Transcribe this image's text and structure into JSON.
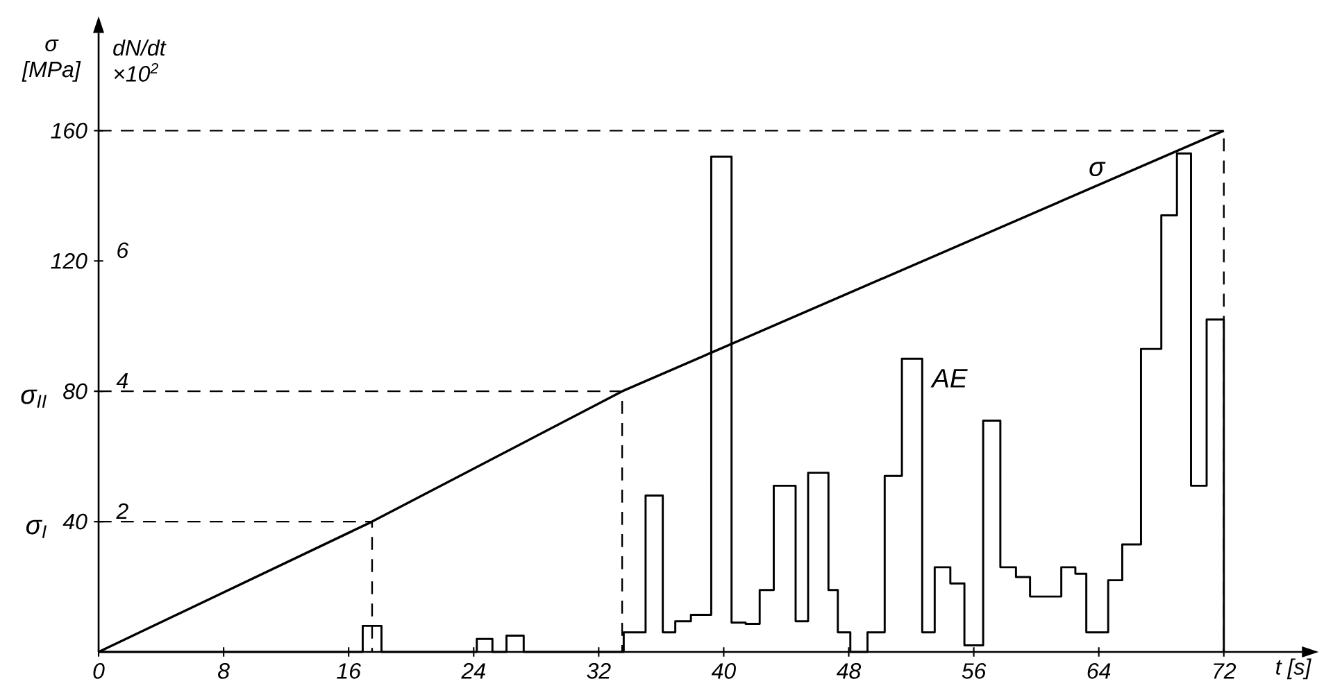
{
  "chart_data": {
    "type": "line",
    "xlabel": "t [s]",
    "ylabel": "σ [MPa]",
    "y2label": "dN/dt ×10$^{2}$",
    "xlim": [
      0,
      77
    ],
    "xticks": [
      0,
      8,
      16,
      24,
      32,
      40,
      48,
      56,
      64,
      72
    ],
    "ylim": [
      0,
      190
    ],
    "yticks": [
      40,
      80,
      120,
      160
    ],
    "y2lim": [
      0,
      9.5
    ],
    "y2ticks": [
      2,
      4,
      6
    ],
    "series": [
      {
        "name": "σ",
        "color": "#000000",
        "x": [
          0,
          17.5,
          33.5,
          72
        ],
        "values": [
          0,
          40,
          80,
          160
        ]
      },
      {
        "name": "AE",
        "type": "step",
        "axis": "y2",
        "color": "#000000",
        "x": [
          0,
          16.9,
          18.1,
          24.2,
          25.2,
          26.1,
          27.2,
          33.6,
          35.0,
          36.1,
          36.9,
          37.9,
          39.2,
          40.5,
          41.4,
          42.3,
          43.2,
          44.6,
          45.4,
          46.7,
          47.3,
          48.1,
          49.2,
          50.3,
          51.4,
          52.7,
          53.5,
          54.5,
          55.4,
          56.6,
          57.7,
          58.7,
          59.6,
          61.6,
          62.5,
          63.2,
          64.6,
          65.5,
          66.7,
          68.0,
          69.0,
          69.9,
          70.9,
          72.0
        ],
        "values": [
          0,
          0.4,
          0,
          0.2,
          0,
          0.25,
          0,
          0.3,
          2.4,
          0.3,
          0.47,
          0.57,
          7.6,
          0.45,
          0.43,
          0.95,
          2.55,
          0.47,
          2.75,
          0.95,
          0.3,
          0,
          0.3,
          2.7,
          4.5,
          0.3,
          1.3,
          1.05,
          0.1,
          3.55,
          1.3,
          1.15,
          0.85,
          1.3,
          1.2,
          0.3,
          1.1,
          1.65,
          4.65,
          6.7,
          7.65,
          2.55,
          5.1,
          0
        ]
      }
    ],
    "ref_lines": [
      {
        "axis": "y",
        "value": 40,
        "label": "σ$_{I}$",
        "line_style": "dashed"
      },
      {
        "axis": "y",
        "value": 80,
        "label": "σ$_{II}$",
        "line_style": "dashed"
      },
      {
        "axis": "y",
        "value": 160,
        "line_style": "dashed"
      }
    ]
  }
}
